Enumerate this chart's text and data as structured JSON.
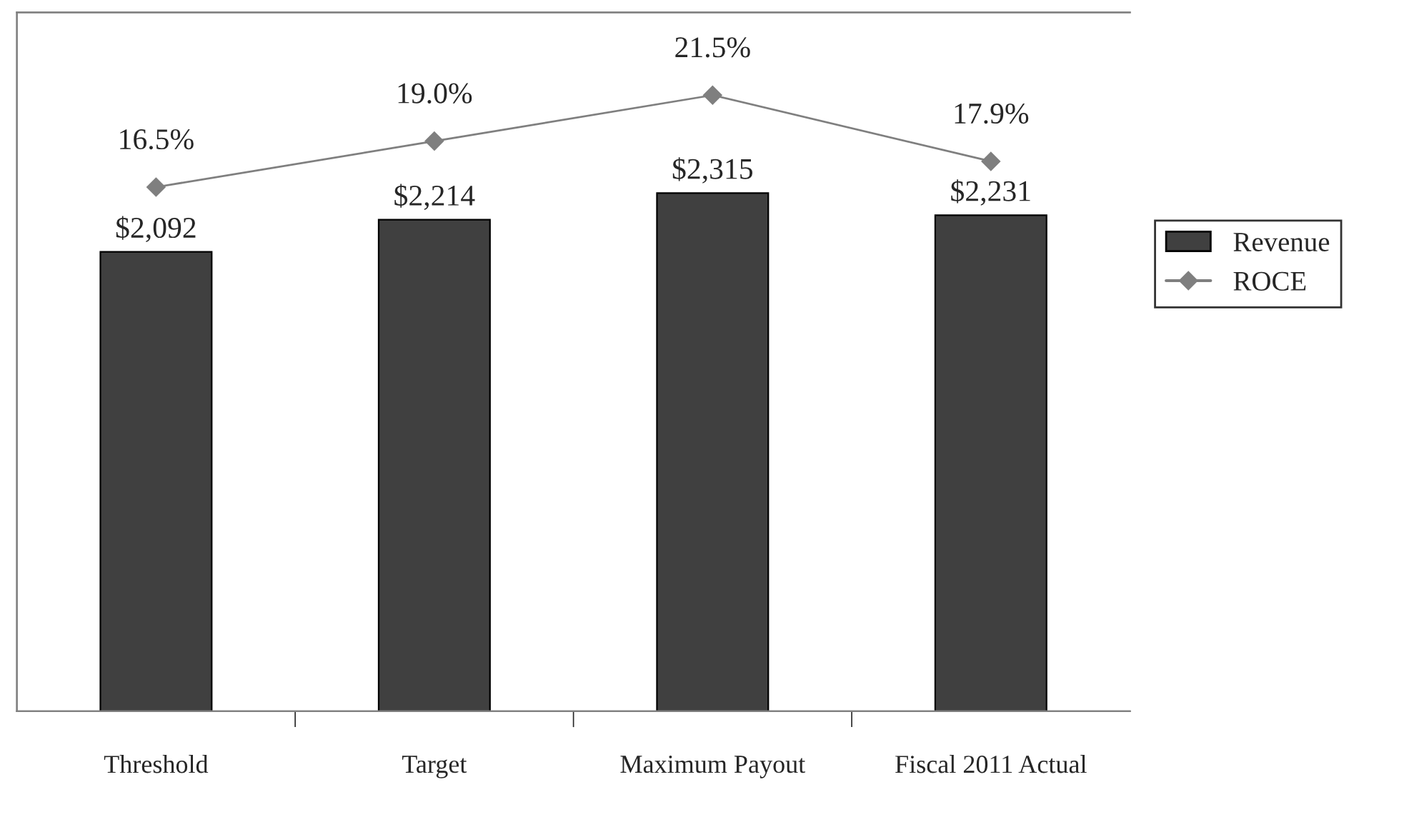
{
  "chart_data": {
    "type": "bar",
    "categories": [
      "Threshold",
      "Target",
      "Maximum Payout",
      "Fiscal 2011 Actual"
    ],
    "series": [
      {
        "name": "Revenue",
        "color": "#404040",
        "values": [
          2092,
          2214,
          2315,
          2231
        ],
        "value_labels": [
          "$2,092",
          "$2,214",
          "$2,315",
          "$2,231"
        ]
      },
      {
        "name": "ROCE",
        "type": "line",
        "axis": "y2",
        "color": "#7f7f7f",
        "marker": "diamond",
        "values": [
          16.5,
          19.0,
          21.5,
          17.9
        ],
        "value_labels": [
          "16.5%",
          "19.0%",
          "21.5%",
          "17.9%"
        ]
      }
    ],
    "ylim": [
      350,
      3000
    ],
    "y2lim": [
      -12,
      26
    ],
    "tick_labels": "x",
    "legend": "right",
    "grid": false
  }
}
